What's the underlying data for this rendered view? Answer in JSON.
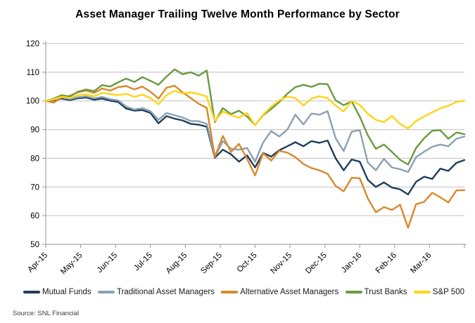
{
  "source": "Source: SNL Financial",
  "colors": {
    "grid": "#BFBFBF",
    "axis": "#A6A6A6",
    "text": "#000000",
    "mutual_funds": "#1F3E5A",
    "traditional_asset_managers": "#8AA0B4",
    "alternative_asset_managers": "#D9882B",
    "trust_banks": "#699B41",
    "sp500": "#FFD417"
  },
  "chart_data": {
    "type": "line",
    "title": "Asset Manager Trailing Twelve Month Performance by Sector",
    "xlabel": "",
    "ylabel": "",
    "ylim": [
      50,
      120
    ],
    "y_ticks": [
      50,
      60,
      70,
      80,
      90,
      100,
      110,
      120
    ],
    "x_tick_labels": [
      "Apr-15",
      "May-15",
      "Jun-15",
      "Jul-15",
      "Aug-15",
      "Sep-15",
      "Oct-15",
      "Nov-15",
      "Dec-15",
      "Jan-16",
      "Feb-16",
      "Mar-16"
    ],
    "x_unit": "weekly samples, Apr-2015 through Mar-2016, indexed to 100",
    "grid": "horizontal",
    "legend_position": "bottom",
    "series": [
      {
        "name": "Mutual Funds",
        "color": "#1F3E5A",
        "values": [
          100,
          100.2,
          100.8,
          100.3,
          100.9,
          101.2,
          100.4,
          100.8,
          100.1,
          99.6,
          97.3,
          96.6,
          96.8,
          95.8,
          92.2,
          94.7,
          93.8,
          93.2,
          92.0,
          91.7,
          91.0,
          80.2,
          83.0,
          81.4,
          78.8,
          81.0,
          76.8,
          81.9,
          80.6,
          82.8,
          84.2,
          85.6,
          84.2,
          86.0,
          85.4,
          86.2,
          80.0,
          75.8,
          79.6,
          78.8,
          72.5,
          70.0,
          71.6,
          69.8,
          69.2,
          67.4,
          71.8,
          73.6,
          72.8,
          76.4,
          75.6,
          78.4,
          79.4
        ]
      },
      {
        "name": "Traditional Asset Managers",
        "color": "#8AA0B4",
        "values": [
          100,
          100.4,
          101.2,
          100.7,
          101.3,
          101.6,
          100.9,
          101.4,
          100.6,
          100.2,
          98.0,
          97.0,
          97.5,
          96.4,
          93.4,
          95.8,
          95.0,
          94.2,
          93.0,
          92.9,
          92.0,
          80.5,
          86.0,
          83.3,
          83.0,
          83.6,
          78.8,
          85.5,
          89.5,
          87.6,
          90.0,
          95.2,
          91.8,
          95.6,
          95.2,
          96.4,
          87.0,
          82.5,
          89.3,
          89.8,
          78.5,
          75.8,
          79.8,
          76.8,
          76.2,
          75.2,
          80.4,
          82.3,
          84.0,
          84.8,
          84.2,
          86.8,
          87.6
        ]
      },
      {
        "name": "Alternative Asset Managers",
        "color": "#D9882B",
        "values": [
          100,
          99.4,
          101.2,
          101.8,
          103.0,
          103.6,
          102.8,
          104.3,
          103.6,
          104.8,
          105.2,
          104.0,
          105.0,
          103.2,
          100.8,
          104.6,
          105.3,
          103.0,
          101.0,
          99.0,
          97.6,
          80.5,
          87.8,
          82.2,
          85.0,
          79.8,
          74.0,
          81.8,
          79.2,
          82.6,
          82.0,
          80.4,
          78.0,
          76.6,
          75.8,
          74.6,
          70.4,
          68.5,
          73.2,
          73.0,
          66.0,
          61.2,
          63.0,
          62.0,
          63.8,
          55.8,
          64.0,
          64.8,
          68.0,
          66.4,
          64.6,
          68.8,
          68.9
        ]
      },
      {
        "name": "Trust Banks",
        "color": "#699B41",
        "values": [
          100,
          100.8,
          102.0,
          101.5,
          103.2,
          104.0,
          103.4,
          105.5,
          105.0,
          106.5,
          107.8,
          106.6,
          108.3,
          107.0,
          105.6,
          108.5,
          111.0,
          109.3,
          110.0,
          108.8,
          110.6,
          92.6,
          97.5,
          95.4,
          96.6,
          94.6,
          91.6,
          95.0,
          97.2,
          99.6,
          102.5,
          104.8,
          105.6,
          104.9,
          106.0,
          105.8,
          100.2,
          98.5,
          99.8,
          94.5,
          88.0,
          83.3,
          84.8,
          82.2,
          79.5,
          77.8,
          83.6,
          87.0,
          89.6,
          89.8,
          86.8,
          89.0,
          88.4
        ]
      },
      {
        "name": "S&P 500",
        "color": "#FFD417",
        "values": [
          100,
          100.6,
          101.5,
          101.0,
          102.0,
          102.3,
          101.6,
          102.8,
          102.4,
          102.0,
          102.5,
          101.4,
          102.2,
          101.0,
          98.8,
          102.0,
          103.5,
          102.6,
          103.0,
          102.4,
          101.5,
          93.0,
          96.3,
          95.0,
          94.2,
          95.8,
          91.5,
          95.2,
          98.0,
          100.2,
          101.5,
          101.0,
          98.4,
          100.8,
          101.6,
          101.0,
          98.4,
          96.3,
          100.0,
          98.6,
          95.5,
          93.4,
          92.6,
          94.8,
          92.0,
          90.4,
          93.0,
          94.6,
          96.0,
          97.4,
          98.3,
          99.6,
          100.1
        ]
      }
    ]
  }
}
